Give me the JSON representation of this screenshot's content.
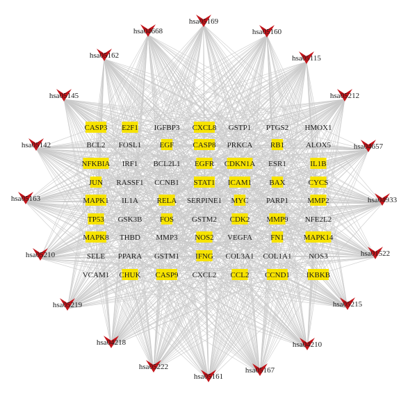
{
  "pathways": [
    "hsa05169",
    "hsa05160",
    "hsa05115",
    "hsa05212",
    "hsa04657",
    "hsa04933",
    "hsa01522",
    "hsa05215",
    "hsa04210",
    "hsa05167",
    "hsa05161",
    "hsa05222",
    "hsa04218",
    "hsa05219",
    "hsa05210",
    "hsa05163",
    "hsa05142",
    "hsa05145",
    "hsa05162",
    "hsa04668"
  ],
  "genes": [
    {
      "label": "CASP3",
      "highlighted": true
    },
    {
      "label": "E2F1",
      "highlighted": true
    },
    {
      "label": "IGFBP3",
      "highlighted": false
    },
    {
      "label": "CXCL8",
      "highlighted": true
    },
    {
      "label": "GSTP1",
      "highlighted": false
    },
    {
      "label": "PTGS2",
      "highlighted": false
    },
    {
      "label": "HMOX1",
      "highlighted": false
    },
    {
      "label": "BCL2",
      "highlighted": false
    },
    {
      "label": "FOSL1",
      "highlighted": false
    },
    {
      "label": "EGF",
      "highlighted": true
    },
    {
      "label": "CASP8",
      "highlighted": true
    },
    {
      "label": "PRKCA",
      "highlighted": false
    },
    {
      "label": "RB1",
      "highlighted": true
    },
    {
      "label": "ALOX5",
      "highlighted": false
    },
    {
      "label": "NFKBIA",
      "highlighted": true
    },
    {
      "label": "IRF1",
      "highlighted": false
    },
    {
      "label": "BCL2L1",
      "highlighted": false
    },
    {
      "label": "EGFR",
      "highlighted": true
    },
    {
      "label": "CDKN1A",
      "highlighted": true
    },
    {
      "label": "ESR1",
      "highlighted": false
    },
    {
      "label": "IL1B",
      "highlighted": true
    },
    {
      "label": "JUN",
      "highlighted": true
    },
    {
      "label": "RASSF1",
      "highlighted": false
    },
    {
      "label": "CCNB1",
      "highlighted": false
    },
    {
      "label": "STAT1",
      "highlighted": true
    },
    {
      "label": "ICAM1",
      "highlighted": true
    },
    {
      "label": "BAX",
      "highlighted": true
    },
    {
      "label": "CYCS",
      "highlighted": true
    },
    {
      "label": "MAPK1",
      "highlighted": true
    },
    {
      "label": "IL1A",
      "highlighted": false
    },
    {
      "label": "RELA",
      "highlighted": true
    },
    {
      "label": "SERPINE1",
      "highlighted": false
    },
    {
      "label": "MYC",
      "highlighted": true
    },
    {
      "label": "PARP1",
      "highlighted": false
    },
    {
      "label": "MMP2",
      "highlighted": true
    },
    {
      "label": "TP53",
      "highlighted": true
    },
    {
      "label": "GSK3B",
      "highlighted": false
    },
    {
      "label": "FOS",
      "highlighted": true
    },
    {
      "label": "GSTM2",
      "highlighted": false
    },
    {
      "label": "CDK2",
      "highlighted": true
    },
    {
      "label": "MMP9",
      "highlighted": true
    },
    {
      "label": "NFE2L2",
      "highlighted": false
    },
    {
      "label": "MAPK8",
      "highlighted": true
    },
    {
      "label": "THBD",
      "highlighted": false
    },
    {
      "label": "MMP3",
      "highlighted": false
    },
    {
      "label": "NOS2",
      "highlighted": true
    },
    {
      "label": "VEGFA",
      "highlighted": false
    },
    {
      "label": "FN1",
      "highlighted": true
    },
    {
      "label": "MAPK14",
      "highlighted": true
    },
    {
      "label": "SELE",
      "highlighted": false
    },
    {
      "label": "PPARA",
      "highlighted": false
    },
    {
      "label": "GSTM1",
      "highlighted": false
    },
    {
      "label": "IFNG",
      "highlighted": true
    },
    {
      "label": "COL3A1",
      "highlighted": false
    },
    {
      "label": "COL1A1",
      "highlighted": false
    },
    {
      "label": "NOS3",
      "highlighted": false
    },
    {
      "label": "VCAM1",
      "highlighted": false
    },
    {
      "label": "CHUK",
      "highlighted": true
    },
    {
      "label": "CASP9",
      "highlighted": true
    },
    {
      "label": "CXCL2",
      "highlighted": false
    },
    {
      "label": "CCL2",
      "highlighted": true
    },
    {
      "label": "CCND1",
      "highlighted": true
    },
    {
      "label": "IKBKB",
      "highlighted": true
    }
  ],
  "colors": {
    "pathway_marker": "#c4141a",
    "gene_highlight": "#f7e300",
    "edge": "#c9c9c9"
  }
}
